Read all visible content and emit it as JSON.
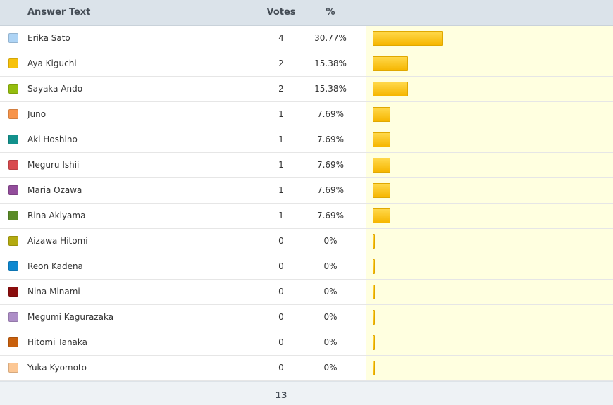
{
  "header": {
    "answer_text": "Answer Text",
    "votes": "Votes",
    "percent": "%"
  },
  "rows": [
    {
      "label": "Erika Sato",
      "votes": "4",
      "percent": "30.77%",
      "fraction": 0.3077,
      "color": "#aed4f5"
    },
    {
      "label": "Aya Kiguchi",
      "votes": "2",
      "percent": "15.38%",
      "fraction": 0.1538,
      "color": "#f7c20b"
    },
    {
      "label": "Sayaka Ando",
      "votes": "2",
      "percent": "15.38%",
      "fraction": 0.1538,
      "color": "#94bd0e"
    },
    {
      "label": "Juno",
      "votes": "1",
      "percent": "7.69%",
      "fraction": 0.0769,
      "color": "#f7944b"
    },
    {
      "label": "Aki Hoshino",
      "votes": "1",
      "percent": "7.69%",
      "fraction": 0.0769,
      "color": "#12918c"
    },
    {
      "label": "Meguru Ishii",
      "votes": "1",
      "percent": "7.69%",
      "fraction": 0.0769,
      "color": "#d84a4e"
    },
    {
      "label": "Maria Ozawa",
      "votes": "1",
      "percent": "7.69%",
      "fraction": 0.0769,
      "color": "#924d9b"
    },
    {
      "label": "Rina Akiyama",
      "votes": "1",
      "percent": "7.69%",
      "fraction": 0.0769,
      "color": "#5a8a27"
    },
    {
      "label": "Aizawa Hitomi",
      "votes": "0",
      "percent": "0%",
      "fraction": 0,
      "color": "#b3aa10"
    },
    {
      "label": "Reon Kadena",
      "votes": "0",
      "percent": "0%",
      "fraction": 0,
      "color": "#0e88d0"
    },
    {
      "label": "Nina Minami",
      "votes": "0",
      "percent": "0%",
      "fraction": 0,
      "color": "#8b0d0d"
    },
    {
      "label": "Megumi Kagurazaka",
      "votes": "0",
      "percent": "0%",
      "fraction": 0,
      "color": "#ad8ec7"
    },
    {
      "label": "Hitomi Tanaka",
      "votes": "0",
      "percent": "0%",
      "fraction": 0,
      "color": "#c8600d"
    },
    {
      "label": "Yuka Kyomoto",
      "votes": "0",
      "percent": "0%",
      "fraction": 0,
      "color": "#fcc794"
    }
  ],
  "footer": {
    "total": "13"
  }
}
